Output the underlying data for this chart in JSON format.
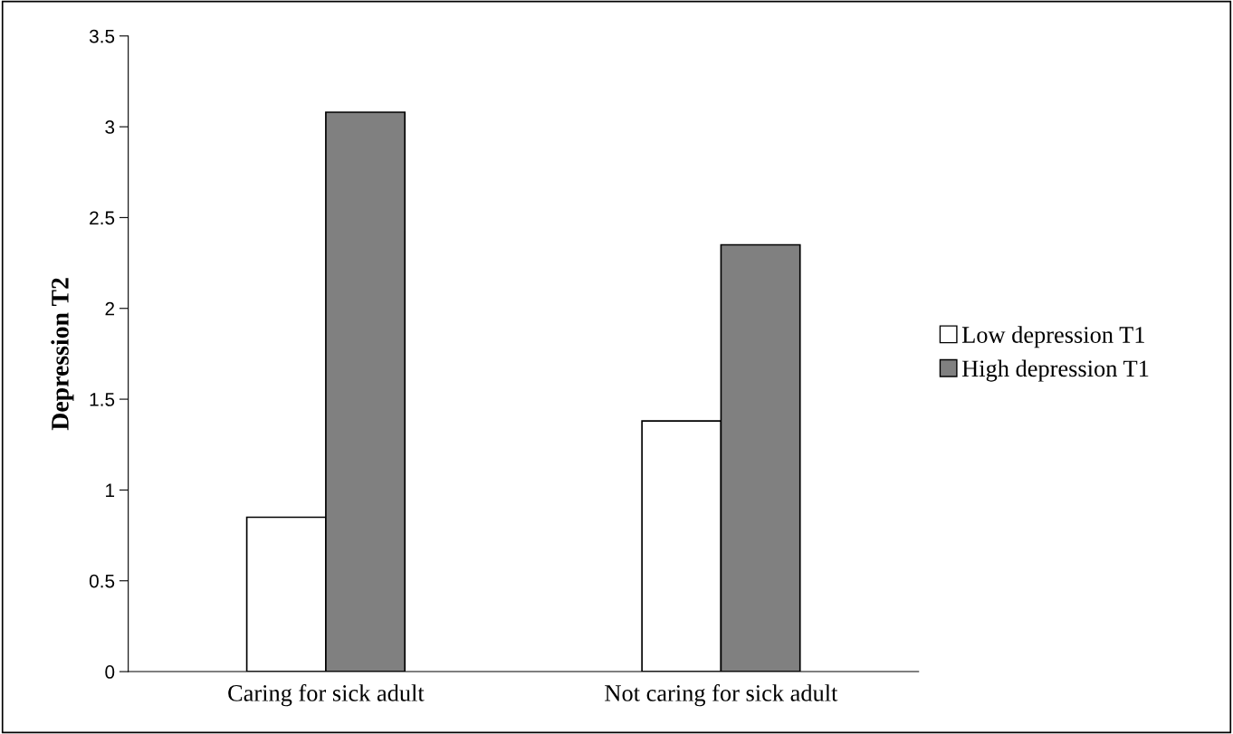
{
  "chart_data": {
    "type": "bar",
    "ylabel": "Depression T2",
    "categories": [
      "Caring for sick adult",
      "Not caring for sick adult"
    ],
    "series": [
      {
        "name": "Low depression T1",
        "color": "#ffffff",
        "values": [
          0.85,
          1.38
        ]
      },
      {
        "name": "High depression T1",
        "color": "#808080",
        "values": [
          3.08,
          2.35
        ]
      }
    ],
    "ylim": [
      0,
      3.5
    ],
    "yticks": [
      0,
      0.5,
      1,
      1.5,
      2,
      2.5,
      3,
      3.5
    ],
    "grid": false,
    "legend": "right"
  }
}
